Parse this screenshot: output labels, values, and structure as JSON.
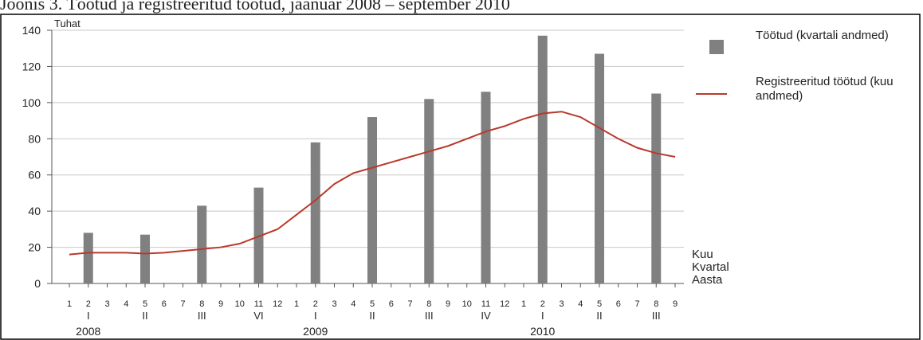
{
  "chart_data": {
    "type": "combo",
    "title": "Joonis 3. Töötud ja registreeritud töötud, jaanuar 2008 – september 2010",
    "y_label": "Tuhat",
    "categories": [
      "1",
      "2",
      "3",
      "4",
      "5",
      "6",
      "7",
      "8",
      "9",
      "10",
      "11",
      "12",
      "1",
      "2",
      "3",
      "4",
      "5",
      "6",
      "7",
      "8",
      "9",
      "10",
      "11",
      "12",
      "1",
      "2",
      "3",
      "4",
      "5",
      "6",
      "7",
      "8",
      "9"
    ],
    "quarters": [
      null,
      "I",
      null,
      null,
      "II",
      null,
      null,
      "III",
      null,
      null,
      "VI",
      null,
      null,
      "I",
      null,
      null,
      "II",
      null,
      null,
      "III",
      null,
      null,
      "IV",
      null,
      null,
      "I",
      null,
      null,
      "II",
      null,
      null,
      "III",
      null
    ],
    "years": [
      null,
      "2008",
      null,
      null,
      null,
      null,
      null,
      null,
      null,
      null,
      null,
      null,
      null,
      "2009",
      null,
      null,
      null,
      null,
      null,
      null,
      null,
      null,
      null,
      null,
      null,
      "2010",
      null,
      null,
      null,
      null,
      null,
      null,
      null
    ],
    "row_labels": [
      "Kuu",
      "Kvartal",
      "Aasta"
    ],
    "series": [
      {
        "name": "Töötud (kvartali andmed)",
        "type": "bar",
        "color": "#808080",
        "values": [
          null,
          28,
          null,
          null,
          27,
          null,
          null,
          43,
          null,
          null,
          53,
          null,
          null,
          78,
          null,
          null,
          92,
          null,
          null,
          102,
          null,
          null,
          106,
          null,
          null,
          137,
          null,
          null,
          127,
          null,
          null,
          105,
          null
        ]
      },
      {
        "name": "Registreeritud töötud (kuu andmed)",
        "type": "line",
        "color": "#b8392c",
        "values": [
          16,
          17,
          17,
          17,
          16.5,
          17,
          18,
          19,
          20,
          22,
          26,
          30,
          38,
          46,
          55,
          61,
          64,
          67,
          70,
          73,
          76,
          80,
          84,
          87,
          91,
          94,
          95,
          92,
          86,
          80,
          75,
          72,
          70
        ]
      }
    ],
    "ylim": [
      0,
      140
    ],
    "yticks": [
      0,
      20,
      40,
      60,
      80,
      100,
      120,
      140
    ],
    "grid": true
  }
}
